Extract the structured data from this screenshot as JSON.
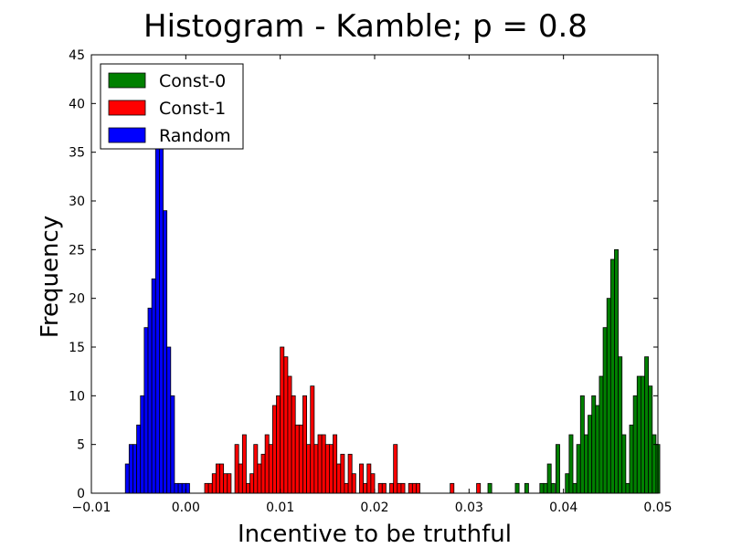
{
  "chart_data": {
    "type": "bar",
    "title": "Histogram - Kamble;  p = 0.8",
    "xlabel": "Incentive to be truthful",
    "ylabel": "Frequency",
    "xlim": [
      -0.01,
      0.05
    ],
    "ylim": [
      0,
      45
    ],
    "xticks": [
      -0.01,
      0.0,
      0.01,
      0.02,
      0.03,
      0.04,
      0.05
    ],
    "xtick_labels": [
      "−0.01",
      "0.00",
      "0.01",
      "0.02",
      "0.03",
      "0.04",
      "0.05"
    ],
    "yticks": [
      0,
      5,
      10,
      15,
      20,
      25,
      30,
      35,
      40,
      45
    ],
    "ytick_labels": [
      "0",
      "5",
      "10",
      "15",
      "20",
      "25",
      "30",
      "35",
      "40",
      "45"
    ],
    "bin_width": 0.0004,
    "legend_position": "top-left",
    "grid": false,
    "series": [
      {
        "name": "Const-0",
        "color": "#008000",
        "x": [
          0.0322,
          0.0351,
          0.0361,
          0.0377,
          0.0381,
          0.0385,
          0.0389,
          0.0394,
          0.0404,
          0.0408,
          0.0412,
          0.0416,
          0.042,
          0.0424,
          0.0428,
          0.0432,
          0.0436,
          0.044,
          0.0444,
          0.0448,
          0.0452,
          0.0456,
          0.046,
          0.0464,
          0.0468,
          0.0472,
          0.0476,
          0.048,
          0.0484,
          0.0488,
          0.0492,
          0.0496,
          0.05
        ],
        "values": [
          1,
          1,
          1,
          1,
          1,
          3,
          1,
          5,
          2,
          6,
          1,
          5,
          10,
          6,
          8,
          10,
          9,
          12,
          17,
          20,
          24,
          25,
          14,
          6,
          1,
          7,
          10,
          12,
          12,
          14,
          11,
          6,
          5
        ]
      },
      {
        "name": "Const-1",
        "color": "#ff0000",
        "x": [
          0.0022,
          0.0026,
          0.003,
          0.0034,
          0.0038,
          0.0042,
          0.0046,
          0.0054,
          0.0058,
          0.0062,
          0.0066,
          0.007,
          0.0074,
          0.0078,
          0.0082,
          0.0086,
          0.009,
          0.0094,
          0.0098,
          0.0102,
          0.0106,
          0.011,
          0.0114,
          0.0118,
          0.0122,
          0.0126,
          0.013,
          0.0134,
          0.0138,
          0.0142,
          0.0146,
          0.015,
          0.0154,
          0.0158,
          0.0162,
          0.0166,
          0.017,
          0.0174,
          0.0178,
          0.0186,
          0.019,
          0.0194,
          0.0198,
          0.0206,
          0.021,
          0.0218,
          0.0222,
          0.0226,
          0.023,
          0.0238,
          0.0242,
          0.0246,
          0.0282,
          0.031
        ],
        "values": [
          1,
          1,
          2,
          3,
          3,
          2,
          2,
          5,
          3,
          6,
          1,
          2,
          5,
          3,
          4,
          6,
          5,
          9,
          10,
          15,
          14,
          12,
          10,
          7,
          7,
          10,
          5,
          11,
          5,
          6,
          6,
          5,
          5,
          6,
          3,
          4,
          1,
          4,
          2,
          3,
          1,
          3,
          2,
          1,
          1,
          1,
          5,
          1,
          1,
          1,
          1,
          1,
          1,
          1
        ]
      },
      {
        "name": "Random",
        "color": "#0000ff",
        "x": [
          -0.0062,
          -0.0058,
          -0.0054,
          -0.005,
          -0.0046,
          -0.0042,
          -0.0038,
          -0.0034,
          -0.003,
          -0.0026,
          -0.0022,
          -0.0018,
          -0.0014,
          -0.001,
          -0.0006,
          -0.0002,
          0.0002
        ],
        "values": [
          3,
          5,
          5,
          7,
          10,
          17,
          19,
          22,
          36,
          37,
          29,
          15,
          10,
          1,
          1,
          1,
          1
        ]
      }
    ]
  }
}
